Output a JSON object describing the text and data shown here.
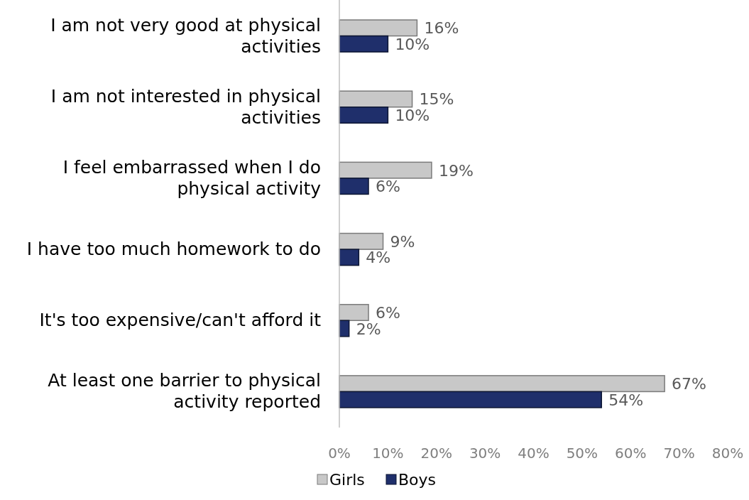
{
  "chart_data": {
    "type": "bar",
    "orientation": "horizontal",
    "categories": [
      "I am not very good at physical activities",
      "I am not interested in physical activities",
      "I feel embarrassed when I do physical activity",
      "I have too much homework to do",
      "It's too expensive/can't afford it",
      "At least one barrier to physical activity reported"
    ],
    "series": [
      {
        "name": "Girls",
        "color": "#c8c8c8",
        "values": [
          16,
          15,
          19,
          9,
          6,
          67
        ],
        "value_labels": [
          "16%",
          "15%",
          "19%",
          "9%",
          "6%",
          "67%"
        ]
      },
      {
        "name": "Boys",
        "color": "#1f2f6b",
        "values": [
          10,
          10,
          6,
          4,
          2,
          54
        ],
        "value_labels": [
          "10%",
          "10%",
          "6%",
          "4%",
          "2%",
          "54%"
        ]
      }
    ],
    "xlim": [
      0,
      80
    ],
    "xticks": [
      {
        "value": 0,
        "label": "0%"
      },
      {
        "value": 10,
        "label": "10%"
      },
      {
        "value": 20,
        "label": "20%"
      },
      {
        "value": 30,
        "label": "30%"
      },
      {
        "value": 40,
        "label": "40%"
      },
      {
        "value": 50,
        "label": "50%"
      },
      {
        "value": 60,
        "label": "60%"
      },
      {
        "value": 70,
        "label": "70%"
      },
      {
        "value": 80,
        "label": "80%"
      }
    ],
    "grid": false,
    "legend": "bottom"
  }
}
